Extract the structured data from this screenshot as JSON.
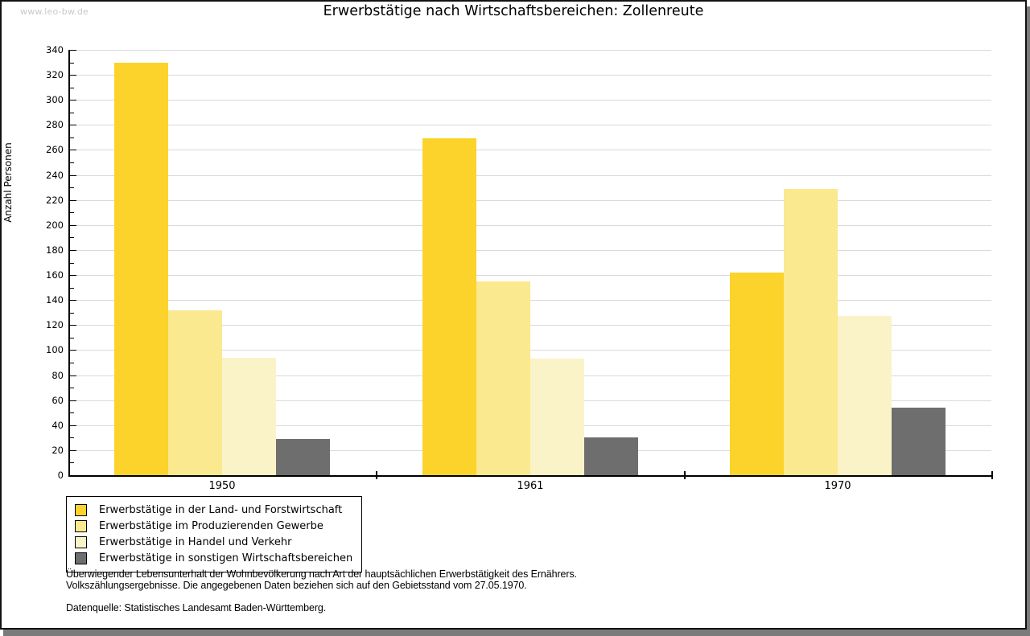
{
  "watermark": "www.leo-bw.de",
  "title": "Erwerbstätige nach Wirtschaftsbereichen: Zollenreute",
  "colors": {
    "background": "#ffffff",
    "frame_border": "#111111",
    "drop_shadow": "#7b7b7b",
    "gridline": "#d9d9d9",
    "axis": "#000000",
    "watermark_gray": "#c9c9c9"
  },
  "chart_data": {
    "type": "bar",
    "title": "Erwerbstätige nach Wirtschaftsbereichen: Zollenreute",
    "xlabel": "",
    "ylabel": "Anzahl Personen",
    "categories": [
      "1950",
      "1961",
      "1970"
    ],
    "series": [
      {
        "name": "Erwerbstätige in der Land- und Forstwirtschaft",
        "color": "#fbd32b",
        "values": [
          330,
          269,
          162
        ]
      },
      {
        "name": "Erwerbstätige im Produzierenden Gewerbe",
        "color": "#fae98e",
        "values": [
          132,
          155,
          229
        ]
      },
      {
        "name": "Erwerbstätige in Handel und Verkehr",
        "color": "#fbf3c8",
        "values": [
          94,
          93,
          127
        ]
      },
      {
        "name": "Erwerbstätige in sonstigen Wirtschaftsbereichen",
        "color": "#6e6e6e",
        "values": [
          29,
          30,
          54
        ]
      }
    ],
    "ylim": [
      0,
      340
    ],
    "ytick_step": 20,
    "minor_tick_step": 10,
    "grid": true,
    "legend_position": "bottom-left"
  },
  "footnotes": [
    "Überwiegender Lebensunterhalt der Wohnbevölkerung nach Art der hauptsächlichen Erwerbstätigkeit des Ernährers.",
    "Volkszählungsergebnisse. Die angegebenen Daten beziehen sich auf den Gebietsstand vom 27.05.1970."
  ],
  "source": "Datenquelle: Statistisches Landesamt Baden-Württemberg."
}
